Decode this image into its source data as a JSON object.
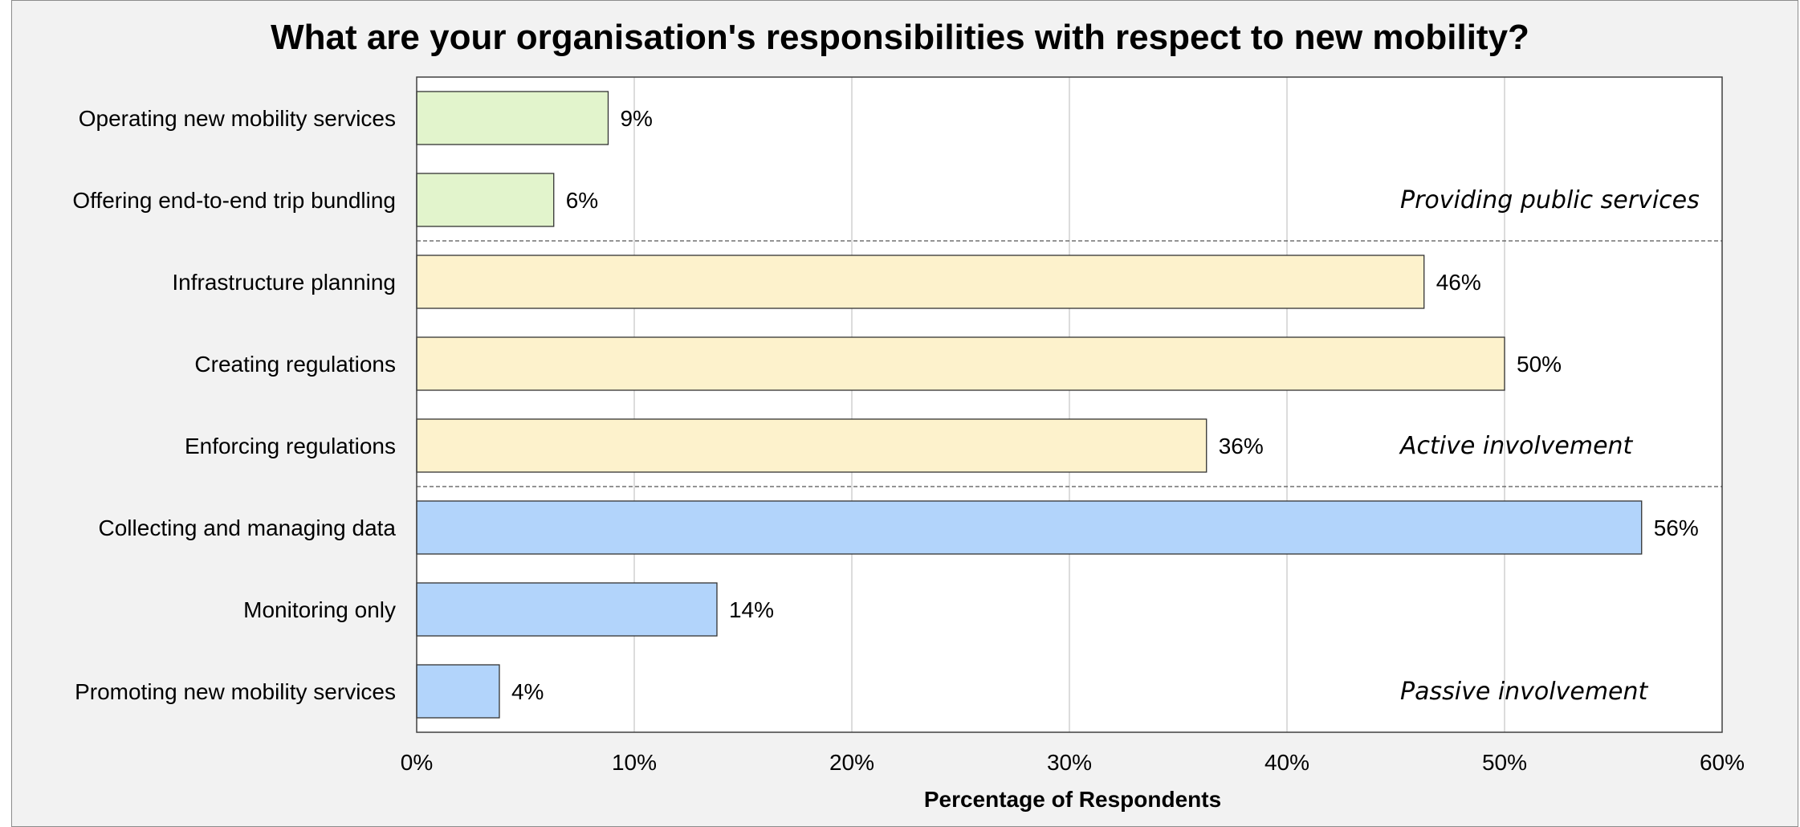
{
  "chart_data": {
    "type": "bar",
    "orientation": "horizontal",
    "title": "What are your organisation's responsibilities with respect to new mobility?",
    "xlabel": "Percentage of Respondents",
    "ylabel": "",
    "xlim": [
      0,
      60
    ],
    "x_ticks": [
      0,
      10,
      20,
      30,
      40,
      50,
      60
    ],
    "x_tick_labels": [
      "0%",
      "10%",
      "20%",
      "30%",
      "40%",
      "50%",
      "60%"
    ],
    "grid": "vertical",
    "categories": [
      "Operating new mobility services",
      "Offering end-to-end trip bundling",
      "Infrastructure planning",
      "Creating regulations",
      "Enforcing regulations",
      "Collecting and managing data",
      "Monitoring only",
      "Promoting new mobility services"
    ],
    "values": [
      8.8,
      6.3,
      46.3,
      50.0,
      36.3,
      56.3,
      13.8,
      3.8
    ],
    "value_labels": [
      "9%",
      "6%",
      "46%",
      "50%",
      "36%",
      "56%",
      "14%",
      "4%"
    ],
    "bar_colors": [
      "#e2f4cc",
      "#e2f4cc",
      "#fdf2cc",
      "#fdf2cc",
      "#fdf2cc",
      "#b2d4fb",
      "#b2d4fb",
      "#b2d4fb"
    ],
    "groups": [
      {
        "label": "Providing public services",
        "first": 0,
        "last": 1
      },
      {
        "label": "Active involvement",
        "first": 2,
        "last": 4
      },
      {
        "label": "Passive involvement",
        "first": 5,
        "last": 7
      }
    ]
  }
}
